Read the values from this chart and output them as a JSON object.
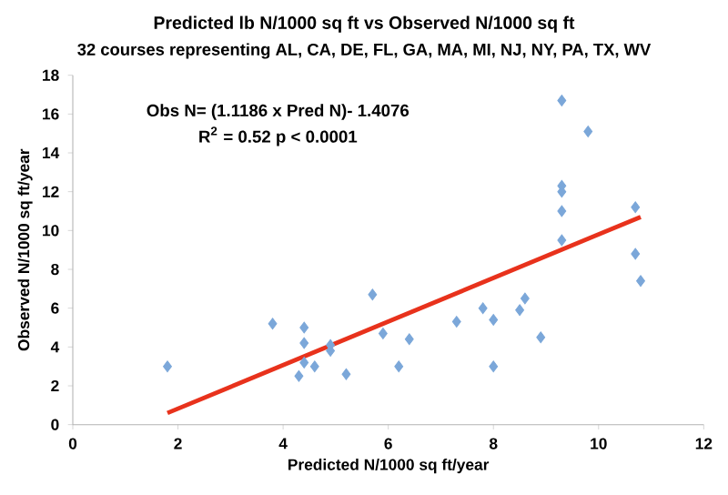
{
  "chart_data": {
    "type": "scatter",
    "title": "Predicted lb N/1000 sq ft vs Observed N/1000 sq ft",
    "subtitle": "32 courses representing AL, CA, DE, FL, GA, MA, MI, NJ, NY, PA, TX, WV",
    "xlabel": "Predicted N/1000 sq ft/year",
    "ylabel": "Observed N/1000 sq ft/year",
    "annotations": [
      "Obs N= (1.1186 x Pred N)- 1.4076",
      "R$^{2}$ = 0.52  p < 0.0001"
    ],
    "xlim": [
      0,
      12
    ],
    "ylim": [
      0,
      18
    ],
    "xticks": [
      0,
      2,
      4,
      6,
      8,
      10,
      12
    ],
    "yticks": [
      0,
      2,
      4,
      6,
      8,
      10,
      12,
      14,
      16,
      18
    ],
    "grid": false,
    "marker": "diamond",
    "series": [
      {
        "color": "#7ba7d9",
        "x": [
          1.8,
          3.8,
          4.3,
          4.4,
          4.4,
          4.4,
          4.6,
          4.9,
          4.9,
          5.2,
          5.7,
          5.9,
          6.2,
          6.4,
          7.3,
          7.8,
          8.0,
          8.0,
          8.5,
          8.6,
          8.9,
          9.3,
          9.3,
          9.3,
          9.3,
          9.3,
          9.8,
          10.7,
          10.7,
          10.8
        ],
        "values": [
          3.0,
          5.2,
          2.5,
          5.0,
          4.2,
          3.2,
          3.0,
          3.8,
          4.1,
          2.6,
          6.7,
          4.7,
          3.0,
          4.4,
          5.3,
          6.0,
          5.4,
          3.0,
          5.9,
          6.5,
          4.5,
          16.7,
          12.3,
          12.0,
          11.0,
          9.5,
          15.1,
          11.2,
          8.8,
          7.4
        ]
      },
      {
        "type": "line",
        "color": "#e8321c",
        "marker": "none",
        "line_style": "solid",
        "x": [
          1.8,
          10.8
        ],
        "values": [
          0.6,
          10.7
        ]
      }
    ]
  }
}
